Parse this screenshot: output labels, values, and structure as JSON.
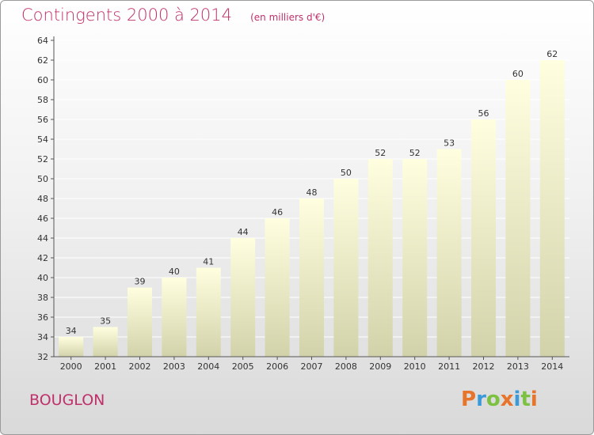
{
  "header": {
    "title": "Contingents 2000 à 2014",
    "unit": "(en milliers d'€)"
  },
  "footer": {
    "place": "BOUGLON",
    "logo_text": "Proxiti",
    "logo_colors": [
      "#e8732a",
      "#3a9ad9",
      "#7cc142",
      "#e8732a",
      "#3a9ad9",
      "#7cc142",
      "#e8732a"
    ]
  },
  "colors": {
    "title": "#c0306a",
    "bar_top": "#ffffe0",
    "bar_bottom": "#d2d2aa",
    "grid": "#ffffff"
  },
  "chart_data": {
    "type": "bar",
    "categories": [
      "2000",
      "2001",
      "2002",
      "2003",
      "2004",
      "2005",
      "2006",
      "2007",
      "2008",
      "2009",
      "2010",
      "2011",
      "2012",
      "2013",
      "2014"
    ],
    "values": [
      34,
      35,
      39,
      40,
      41,
      44,
      46,
      48,
      50,
      52,
      52,
      53,
      56,
      60,
      62
    ],
    "ylim": [
      32,
      64
    ],
    "yticks": [
      32,
      34,
      36,
      38,
      40,
      42,
      44,
      46,
      48,
      50,
      52,
      54,
      56,
      58,
      60,
      62,
      64
    ],
    "grid": true,
    "data_labels": true
  }
}
